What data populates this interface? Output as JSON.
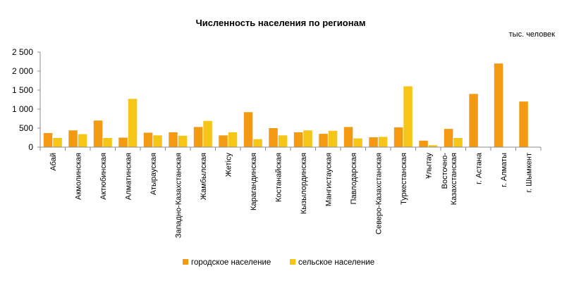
{
  "chart_data": {
    "type": "bar",
    "title": "Численность населения по регионам",
    "unit_label": "тыс. человек",
    "categories": [
      "Абай",
      "Акмолинская",
      "Актюбинская",
      "Алматинская",
      "Атырауская",
      "Западно-Казахстанская",
      "Жамбылская",
      "Жетісу",
      "Карагандинская",
      "Костанайская",
      "Кызылординская",
      "Мангистауская",
      "Павлодарская",
      "Северо-Казахстанская",
      "Туркестанская",
      "Ұлытау",
      "Восточно-Казахстанская",
      "г. Астана",
      "г. Алматы",
      "г. Шымкент"
    ],
    "category_lines": [
      [
        "Абай"
      ],
      [
        "Акмолинская"
      ],
      [
        "Актюбинская"
      ],
      [
        "Алматинская"
      ],
      [
        "Атырауская"
      ],
      [
        "Западно-Казахстанская"
      ],
      [
        "Жамбылская"
      ],
      [
        "Жетісу"
      ],
      [
        "Карагандинская"
      ],
      [
        "Костанайская"
      ],
      [
        "Кызылординская"
      ],
      [
        "Мангистауская"
      ],
      [
        "Павлодарская"
      ],
      [
        "Северо-Казахстанская"
      ],
      [
        "Туркестанская"
      ],
      [
        "Ұлытау"
      ],
      [
        "Восточно-",
        "Казахстанская"
      ],
      [
        "г. Астана"
      ],
      [
        "г. Алматы"
      ],
      [
        "г. Шымкент"
      ]
    ],
    "series": [
      {
        "name": "городское население",
        "color": "#F39A12",
        "values": [
          370,
          440,
          700,
          250,
          380,
          390,
          530,
          310,
          920,
          500,
          390,
          350,
          530,
          260,
          520,
          170,
          480,
          1400,
          2200,
          1200
        ]
      },
      {
        "name": "сельское население",
        "color": "#F5C518",
        "values": [
          240,
          340,
          240,
          1270,
          310,
          300,
          690,
          390,
          210,
          310,
          440,
          430,
          230,
          270,
          1600,
          50,
          240,
          0,
          0,
          0
        ]
      }
    ],
    "yticks": [
      0,
      500,
      1000,
      1500,
      2000,
      2500
    ],
    "ytick_labels": [
      "0",
      "500",
      "1 000",
      "1 500",
      "2 000",
      "2 500"
    ],
    "ylim": [
      0,
      2500
    ],
    "grid": false,
    "legend_position": "bottom"
  }
}
